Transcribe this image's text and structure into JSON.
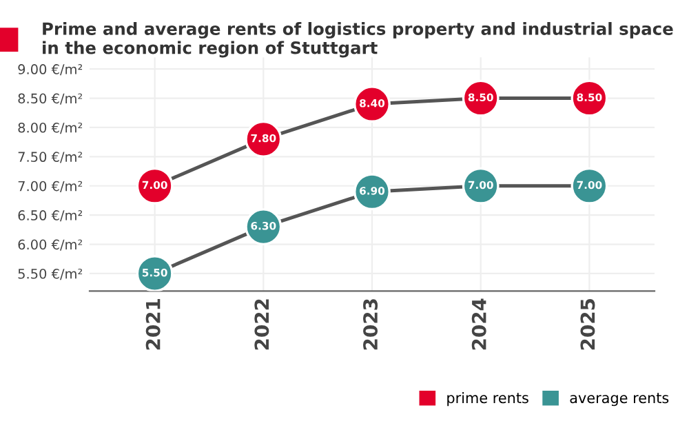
{
  "chart_data": {
    "type": "line",
    "title": "Prime and average rents of logistics property and industrial space\nin the economic region of Stuttgart",
    "categories": [
      "2021",
      "2022",
      "2023",
      "2024",
      "2025"
    ],
    "series": [
      {
        "name": "prime rents",
        "color": "#e3002b",
        "values": [
          7.0,
          7.8,
          8.4,
          8.5,
          8.5
        ],
        "value_labels": [
          "7.00",
          "7.80",
          "8.40",
          "8.50",
          "8.50"
        ]
      },
      {
        "name": "average rents",
        "color": "#3a9494",
        "values": [
          5.5,
          6.3,
          6.9,
          7.0,
          7.0
        ],
        "value_labels": [
          "5.50",
          "6.30",
          "6.90",
          "7.00",
          "7.00"
        ]
      }
    ],
    "ylim": [
      5.2,
      9.2
    ],
    "yticks": [
      {
        "value": 5.5,
        "label": "5.50 €/m²"
      },
      {
        "value": 6.0,
        "label": "6.00 €/m²"
      },
      {
        "value": 6.5,
        "label": "6.50 €/m²"
      },
      {
        "value": 7.0,
        "label": "7.00 €/m²"
      },
      {
        "value": 7.5,
        "label": "7.50 €/m²"
      },
      {
        "value": 8.0,
        "label": "8.00 €/m²"
      },
      {
        "value": 8.5,
        "label": "8.50 €/m²"
      },
      {
        "value": 9.0,
        "label": "9.00 €/m²"
      }
    ],
    "grid": true,
    "legend": "bottom right",
    "marker": "circle",
    "line_style": "solid"
  }
}
